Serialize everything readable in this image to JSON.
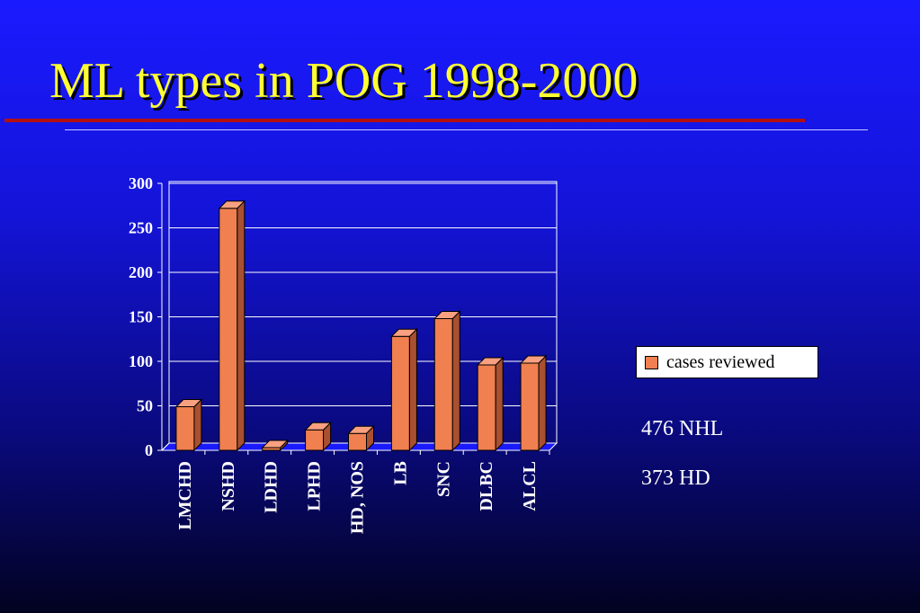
{
  "slide": {
    "title": "ML types in POG 1998-2000",
    "notes": [
      "476 NHL",
      "373 HD"
    ]
  },
  "colors": {
    "title": "#ffff33",
    "bar": "#f08050",
    "rule": "#b21010"
  },
  "chart_data": {
    "type": "bar",
    "categories": [
      "LMCHD",
      "NSHD",
      "LDHD",
      "LPHD",
      "HD, NOS",
      "LB",
      "SNC",
      "DLBC",
      "ALCL"
    ],
    "series": [
      {
        "name": "cases reviewed",
        "values": [
          49,
          272,
          3,
          23,
          19,
          128,
          148,
          96,
          98
        ]
      }
    ],
    "ylim": [
      0,
      300
    ],
    "yticks": [
      0,
      50,
      100,
      150,
      200,
      250,
      300
    ],
    "grid": true,
    "legend": "right",
    "three_d": true
  }
}
